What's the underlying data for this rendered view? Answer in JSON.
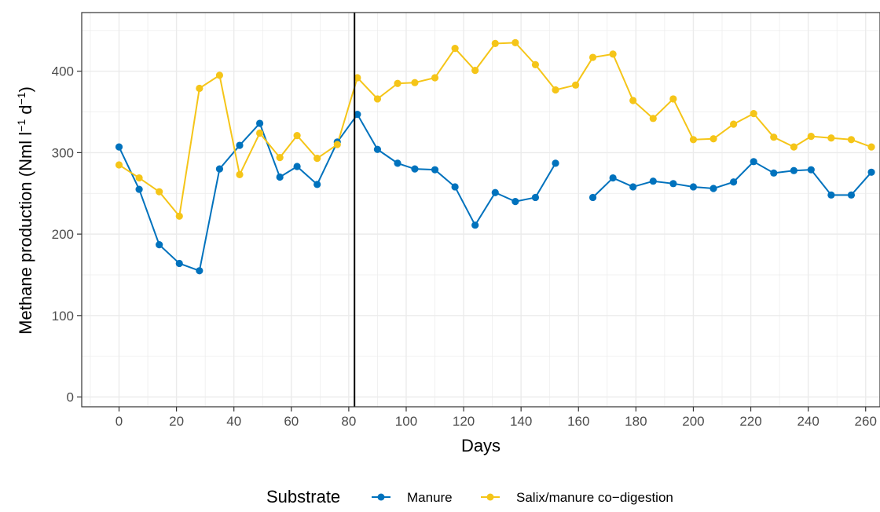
{
  "chart_data": {
    "type": "line",
    "xlabel": "Days",
    "ylabel": "Methane production (Nml l",
    "ylabel_unit_l_exp": "−1",
    "ylabel_unit_d": " d",
    "ylabel_unit_d_exp": "−1",
    "ylabel_close": ")",
    "xlim": [
      -13,
      265
    ],
    "ylim": [
      -12,
      472
    ],
    "x_ticks": [
      0,
      20,
      40,
      60,
      80,
      100,
      120,
      140,
      160,
      180,
      200,
      220,
      240,
      260
    ],
    "x_tick_labels": [
      "0",
      "20",
      "40",
      "60",
      "80",
      "100",
      "120",
      "140",
      "160",
      "180",
      "200",
      "220",
      "240",
      "260"
    ],
    "y_ticks": [
      0,
      100,
      200,
      300,
      400
    ],
    "y_tick_labels": [
      "0",
      "100",
      "200",
      "300",
      "400"
    ],
    "vline_x": 82,
    "grid": true,
    "legend": {
      "title": "Substrate",
      "position": "bottom"
    },
    "series": [
      {
        "name": "Manure",
        "color": "#0072BD",
        "segments": [
          [
            [
              0,
              307
            ],
            [
              7,
              255
            ],
            [
              14,
              187
            ],
            [
              21,
              164
            ],
            [
              28,
              155
            ],
            [
              35,
              280
            ],
            [
              42,
              309
            ],
            [
              49,
              336
            ],
            [
              56,
              270
            ],
            [
              62,
              283
            ],
            [
              69,
              261
            ],
            [
              76,
              313
            ],
            [
              83,
              347
            ],
            [
              90,
              304
            ],
            [
              97,
              287
            ],
            [
              103,
              280
            ],
            [
              110,
              279
            ],
            [
              117,
              258
            ],
            [
              124,
              211
            ],
            [
              131,
              251
            ],
            [
              138,
              240
            ],
            [
              145,
              245
            ],
            [
              152,
              287
            ]
          ],
          [
            [
              165,
              245
            ],
            [
              172,
              269
            ],
            [
              179,
              258
            ],
            [
              186,
              265
            ],
            [
              193,
              262
            ],
            [
              200,
              258
            ],
            [
              207,
              256
            ],
            [
              214,
              264
            ],
            [
              221,
              289
            ],
            [
              228,
              275
            ],
            [
              235,
              278
            ],
            [
              241,
              279
            ],
            [
              248,
              248
            ],
            [
              255,
              248
            ],
            [
              262,
              276
            ]
          ]
        ]
      },
      {
        "name": "Salix/manure co−digestion",
        "color": "#F5C518",
        "segments": [
          [
            [
              0,
              285
            ],
            [
              7,
              269
            ],
            [
              14,
              252
            ],
            [
              21,
              222
            ],
            [
              28,
              379
            ],
            [
              35,
              395
            ],
            [
              42,
              273
            ],
            [
              49,
              324
            ],
            [
              56,
              294
            ],
            [
              62,
              321
            ],
            [
              69,
              293
            ],
            [
              76,
              310
            ],
            [
              83,
              392
            ],
            [
              90,
              366
            ],
            [
              97,
              385
            ],
            [
              103,
              386
            ],
            [
              110,
              392
            ],
            [
              117,
              428
            ],
            [
              124,
              401
            ],
            [
              131,
              434
            ],
            [
              138,
              435
            ],
            [
              145,
              408
            ],
            [
              152,
              377
            ],
            [
              159,
              383
            ],
            [
              165,
              417
            ],
            [
              172,
              421
            ],
            [
              179,
              364
            ],
            [
              186,
              342
            ],
            [
              193,
              366
            ],
            [
              200,
              316
            ],
            [
              207,
              317
            ],
            [
              214,
              335
            ],
            [
              221,
              348
            ],
            [
              228,
              319
            ],
            [
              235,
              307
            ],
            [
              241,
              320
            ],
            [
              248,
              318
            ],
            [
              255,
              316
            ],
            [
              262,
              307
            ]
          ]
        ]
      }
    ]
  }
}
